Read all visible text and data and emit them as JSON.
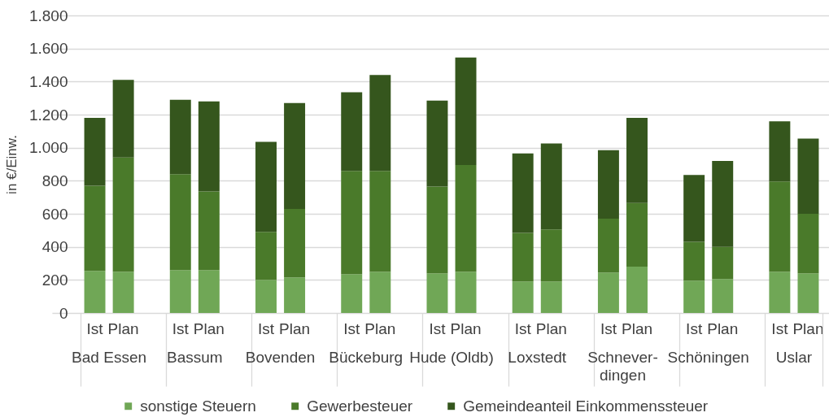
{
  "chart_data": {
    "type": "bar",
    "ylabel": "in €/Einw.",
    "categories": [
      "Ist",
      "Plan",
      null,
      "Ist",
      "Plan",
      null,
      "Ist",
      "Plan",
      null,
      "Ist",
      "Plan",
      null,
      "Ist",
      "Plan",
      null,
      "Ist",
      "Plan",
      null,
      "Ist",
      "Plan",
      null,
      "Ist",
      "Plan",
      null,
      "Ist",
      "Plan"
    ],
    "series": [
      {
        "name": "sonstige Steuern",
        "color": "#70a756",
        "values": [
          255,
          250,
          null,
          260,
          260,
          null,
          200,
          215,
          null,
          235,
          250,
          null,
          240,
          250,
          null,
          190,
          190,
          null,
          245,
          280,
          null,
          195,
          205,
          null,
          250,
          240
        ]
      },
      {
        "name": "Gewerbesteuer",
        "color": "#4a7a2a",
        "values": [
          515,
          690,
          null,
          580,
          475,
          null,
          290,
          415,
          null,
          625,
          610,
          null,
          525,
          645,
          null,
          295,
          315,
          null,
          325,
          385,
          null,
          235,
          195,
          null,
          545,
          360
        ]
      },
      {
        "name": "Gemeindeanteil Einkommenssteuer",
        "color": "#35561d",
        "values": [
          410,
          470,
          null,
          450,
          545,
          null,
          545,
          640,
          null,
          475,
          580,
          null,
          520,
          650,
          null,
          480,
          520,
          null,
          415,
          515,
          null,
          405,
          520,
          null,
          365,
          455
        ]
      }
    ],
    "stacked": true,
    "ylim": [
      0,
      1800
    ],
    "yticks": [
      0,
      200,
      400,
      600,
      800,
      {
        "value": 1000,
        "label": "1.000"
      },
      {
        "value": 1200,
        "label": "1.200"
      },
      {
        "value": 1400,
        "label": "1.400"
      },
      {
        "value": 1600,
        "label": "1.600"
      },
      {
        "value": 1800,
        "label": "1.800"
      }
    ],
    "grid": "y",
    "legend": "bottom",
    "annotations": [
      "Bad Essen",
      "Bassum",
      "Bovenden",
      "Bückeburg",
      "Hude (Oldb)",
      "Loxstedt",
      "Schnever-\ndingen",
      "Schöningen",
      "Uslar"
    ]
  }
}
